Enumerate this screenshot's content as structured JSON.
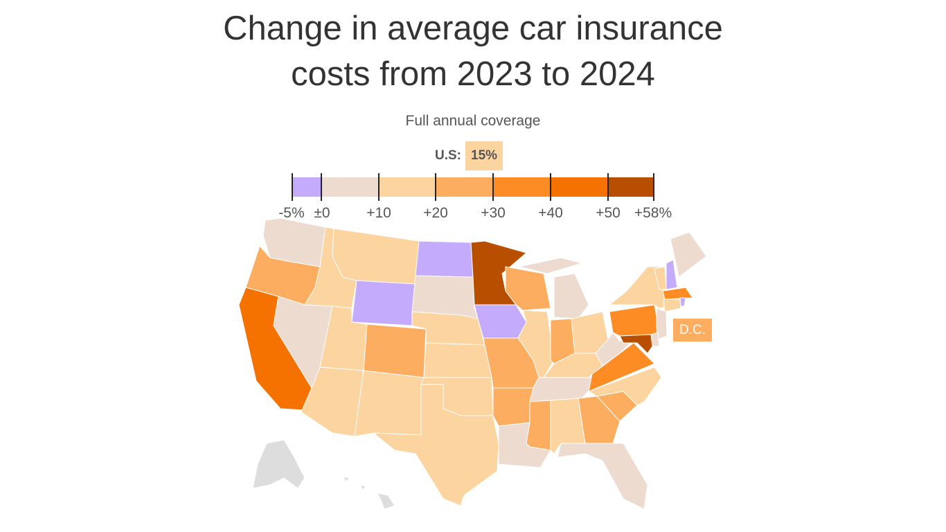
{
  "title": "Change in average car insurance costs from 2023 to 2024",
  "subtitle": "Full annual coverage",
  "us_average": {
    "label": "U.S:",
    "value": "15%",
    "color": "#fcd49f"
  },
  "chart_data": {
    "type": "choropleth",
    "legend": {
      "bins": [
        {
          "from": -5,
          "to": 0,
          "color": "#c4abfb"
        },
        {
          "from": 0,
          "to": 10,
          "color": "#eddbd0"
        },
        {
          "from": 10,
          "to": 20,
          "color": "#fcd49f"
        },
        {
          "from": 20,
          "to": 30,
          "color": "#fdad5f"
        },
        {
          "from": 30,
          "to": 40,
          "color": "#fe8c25"
        },
        {
          "from": 40,
          "to": 50,
          "color": "#f57200"
        },
        {
          "from": 50,
          "to": 58,
          "color": "#b84f00"
        }
      ],
      "tick_labels": [
        "-5%",
        "±0",
        "+10",
        "+20",
        "+30",
        "+40",
        "+50",
        "+58%"
      ]
    },
    "no_data_color": "#dddddd",
    "states": {
      "WA": 1,
      "OR": 3,
      "CA": 5,
      "NV": 1,
      "ID": 2,
      "MT": 2,
      "WY": 0,
      "UT": 2,
      "AZ": 2,
      "CO": 3,
      "NM": 2,
      "ND": 0,
      "SD": 1,
      "NE": 2,
      "KS": 2,
      "OK": 2,
      "TX": 2,
      "MN": 6,
      "IA": 0,
      "MO": 3,
      "AR": 3,
      "LA": 1,
      "WI": 3,
      "IL": 2,
      "MI": 1,
      "IN": 3,
      "OH": 2,
      "KY": 2,
      "TN": 1,
      "MS": 3,
      "AL": 2,
      "GA": 3,
      "FL": 1,
      "SC": 3,
      "NC": 2,
      "VA": 4,
      "WV": 1,
      "PA": 4,
      "NY": 2,
      "VT": 2,
      "NH": 0,
      "ME": 1,
      "MA": 4,
      "RI": 0,
      "CT": 2,
      "NJ": 1,
      "DE": 1,
      "MD": 6,
      "DC": 3,
      "AK": null,
      "HI": null
    },
    "dc_label": "D.C."
  }
}
